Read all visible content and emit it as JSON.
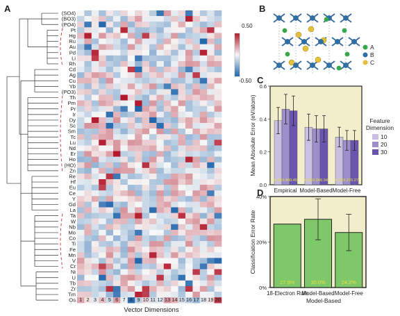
{
  "panels": {
    "A": "A",
    "B": "B",
    "C": "C",
    "D": "D"
  },
  "heatmap": {
    "rows": [
      "(SO4)",
      "(BO3)",
      "(PO4)",
      "Pt",
      "Hg",
      "Ru",
      "Au",
      "Pd",
      "Li",
      "Rh",
      "Cd",
      "Ag",
      "Cu",
      "Yb",
      "(PO3)",
      "Th",
      "Pm",
      "Pr",
      "Ir",
      "Dy",
      "Sc",
      "Sm",
      "Tc",
      "Lu",
      "Nd",
      "Er",
      "Ho",
      "(HO)",
      "Zn",
      "Re",
      "Hf",
      "Eu",
      "Ce",
      "Y",
      "Gd",
      "La",
      "Ta",
      "W",
      "Nb",
      "Mo",
      "Co",
      "Ti",
      "Fe",
      "Mn",
      "V",
      "Cr",
      "Ni",
      "U",
      "Tb",
      "Zr",
      "Tm",
      "Os"
    ],
    "cols": [
      "1",
      "2",
      "3",
      "4",
      "5",
      "6",
      "7",
      "8",
      "9",
      "10",
      "11",
      "12",
      "13",
      "14",
      "15",
      "16",
      "17",
      "18",
      "19",
      "20"
    ],
    "xlabel": "Vector Dimensions",
    "colorbar": {
      "max": "0.50",
      "min": "-0.50"
    },
    "colors": {
      "pos": "#b2182b",
      "neg": "#2166ac",
      "mid": "#f7f7f7"
    }
  },
  "crystal": {
    "legend": [
      {
        "label": "A",
        "color": "#3aa84a"
      },
      {
        "label": "B",
        "color": "#2e6fa8"
      },
      {
        "label": "C",
        "color": "#e3c13a"
      }
    ]
  },
  "chart_data": [
    {
      "type": "bar",
      "panel": "C",
      "ylabel": "Mean Absolute Error (eV/atom)",
      "categories": [
        "Empirical",
        "Model-Based",
        "Model-Free"
      ],
      "ylim": [
        0,
        0.6
      ],
      "yticks": [
        "0.0",
        "0.2",
        "0.4",
        "0.6"
      ],
      "legend_title": "Feature Dimension",
      "series": [
        {
          "name": "10",
          "color": "#c9bfe0",
          "values": [
            0.39,
            0.35,
            0.29
          ],
          "errors": [
            0.08,
            0.08,
            0.06
          ]
        },
        {
          "name": "20",
          "color": "#9d8fcc",
          "values": [
            0.46,
            0.34,
            0.27
          ],
          "errors": [
            0.09,
            0.08,
            0.06
          ]
        },
        {
          "name": "30",
          "color": "#6a55b0",
          "values": [
            0.45,
            0.34,
            0.27
          ],
          "errors": [
            0.09,
            0.08,
            0.06
          ]
        }
      ],
      "data_labels": [
        "0.39",
        "0.46",
        "0.45",
        "0.35",
        "0.34",
        "0.34",
        "0.29",
        "0.27",
        "0.27"
      ]
    },
    {
      "type": "bar",
      "panel": "D",
      "ylabel": "Classification Error Rate",
      "xlabel": "Model-Based",
      "categories": [
        "18-Electron Rule",
        "Model-Based",
        "Model-Free"
      ],
      "values": [
        27.9,
        30.0,
        24.2
      ],
      "errors": [
        0,
        9,
        8
      ],
      "data_labels": [
        "27.9%",
        "30.0%",
        "24.2%"
      ],
      "ylim": [
        0,
        40
      ],
      "yticks": [
        "0%",
        "20%",
        "40%"
      ],
      "color": "#7ec86a"
    }
  ]
}
